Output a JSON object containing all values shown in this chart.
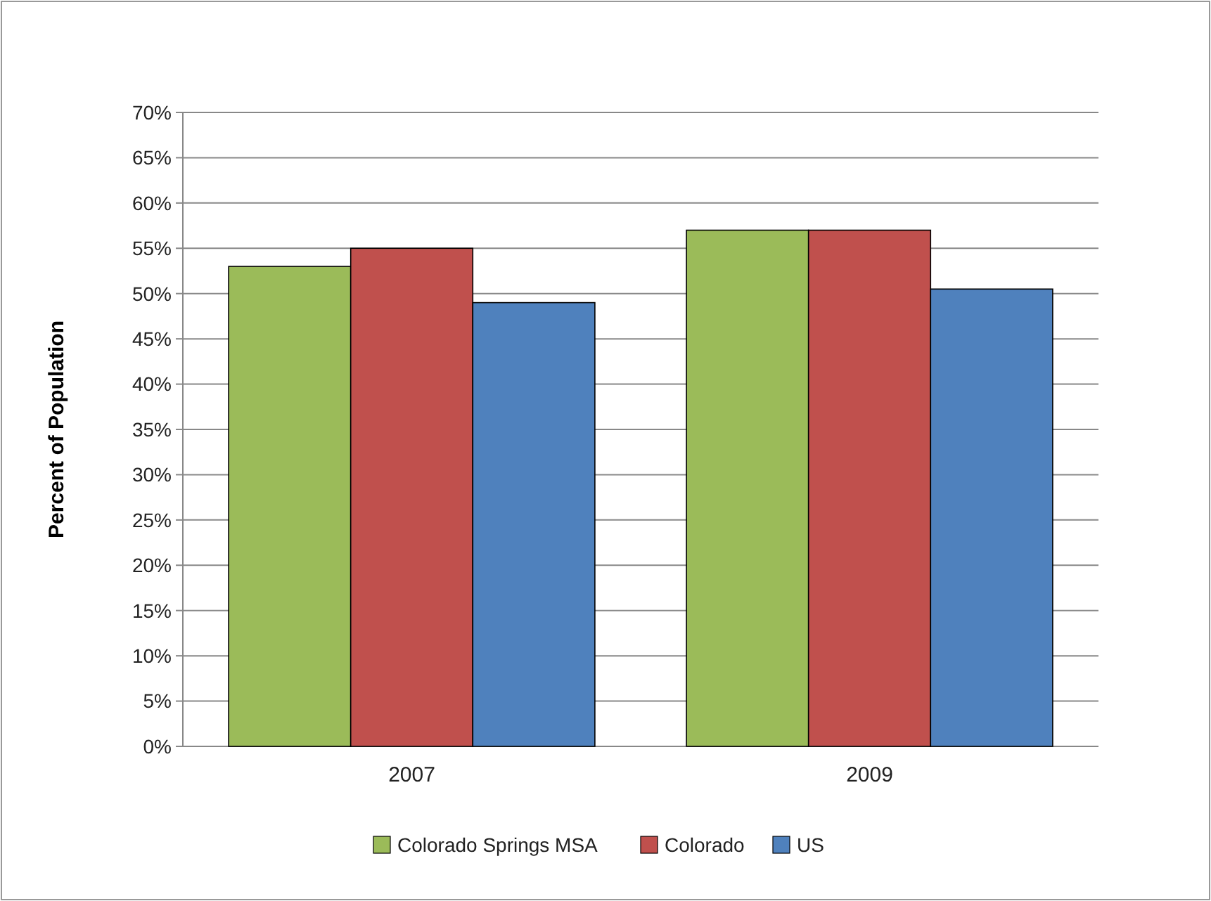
{
  "chart_data": {
    "type": "bar",
    "ylabel": "Percent of Population",
    "categories": [
      "2007",
      "2009"
    ],
    "series": [
      {
        "name": "Colorado Springs MSA",
        "color": "#9bbb59",
        "values": [
          53,
          57
        ]
      },
      {
        "name": "Colorado",
        "color": "#c0504d",
        "values": [
          55,
          57
        ]
      },
      {
        "name": "US",
        "color": "#4f81bd",
        "values": [
          49,
          50.5
        ]
      }
    ],
    "ylim": [
      0,
      70
    ],
    "yticks": [
      {
        "value": 0,
        "label": "0%"
      },
      {
        "value": 5,
        "label": "5%"
      },
      {
        "value": 10,
        "label": "10%"
      },
      {
        "value": 15,
        "label": "15%"
      },
      {
        "value": 20,
        "label": "20%"
      },
      {
        "value": 25,
        "label": "25%"
      },
      {
        "value": 30,
        "label": "30%"
      },
      {
        "value": 35,
        "label": "35%"
      },
      {
        "value": 40,
        "label": "40%"
      },
      {
        "value": 45,
        "label": "45%"
      },
      {
        "value": 50,
        "label": "50%"
      },
      {
        "value": 55,
        "label": "55%"
      },
      {
        "value": 60,
        "label": "60%"
      },
      {
        "value": 65,
        "label": "65%"
      },
      {
        "value": 70,
        "label": "70%"
      }
    ],
    "grid": "y",
    "legend": "bottom"
  }
}
